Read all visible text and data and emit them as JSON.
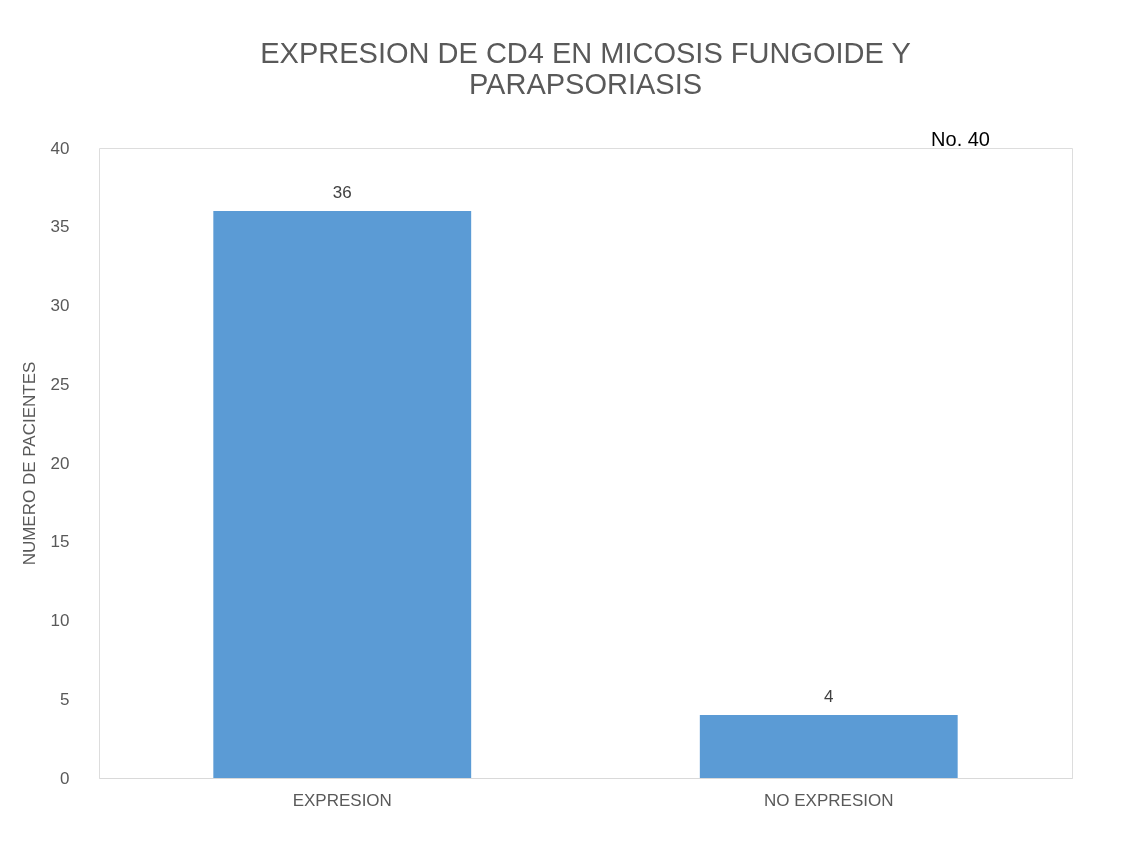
{
  "chart_data": {
    "type": "bar",
    "title": "EXPRESION DE CD4 EN MICOSIS FUNGOIDE Y PARAPSORIASIS",
    "ylabel": "NUMERO DE PACIENTES",
    "categories": [
      "EXPRESION",
      "NO EXPRESION"
    ],
    "values": [
      36,
      4
    ],
    "color": "#5b9bd5",
    "ylim": [
      0,
      40
    ],
    "yticks": [
      0,
      5,
      10,
      15,
      20,
      25,
      30,
      35,
      40
    ],
    "grid": false,
    "data_labels": true,
    "annotations": [
      "No. 40"
    ]
  }
}
